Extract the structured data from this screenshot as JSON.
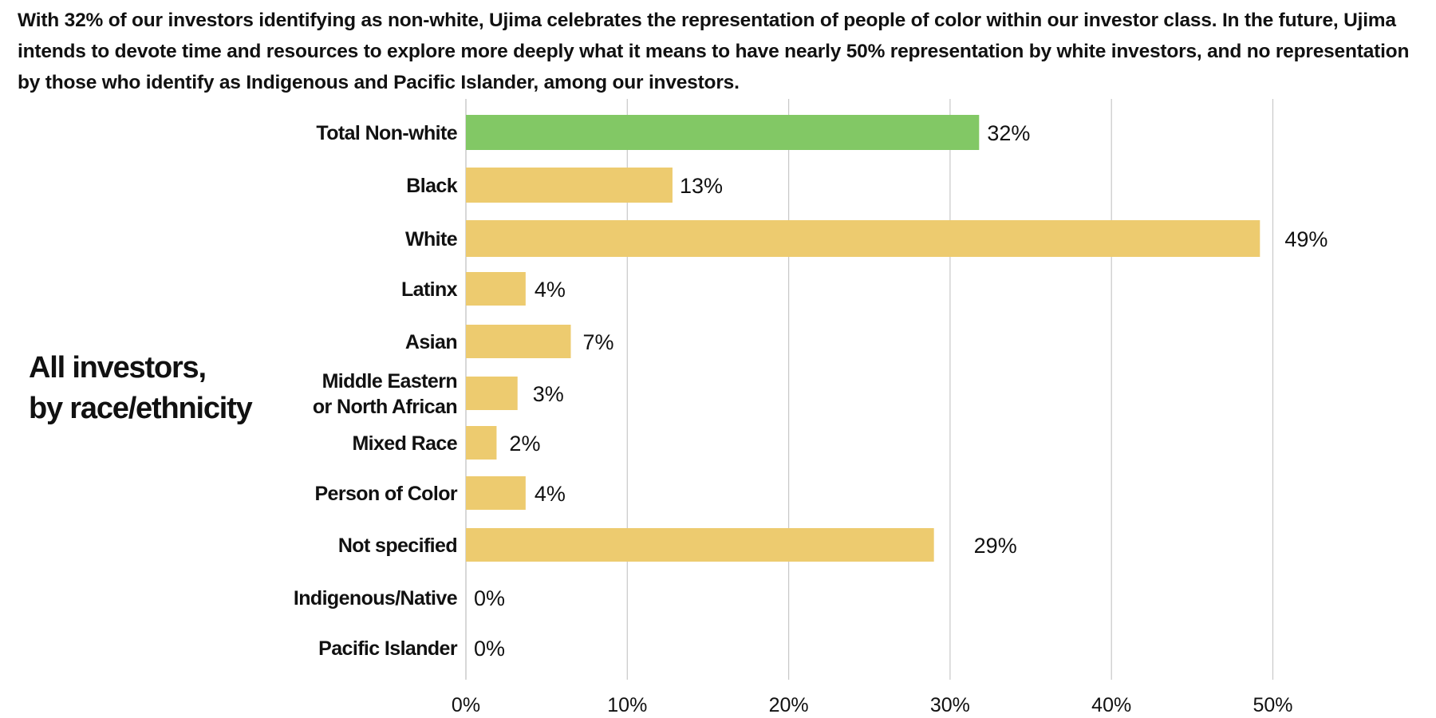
{
  "intro_text": "With 32% of our investors identifying as non-white, Ujima celebrates the representation of people of color within our investor class. In the future, Ujima intends to devote time and resources to explore more deeply what it means to have nearly 50% representation by white investors, and no representation by those who identify as Indigenous and Pacific Islander, among our investors.",
  "chart_title": {
    "line1": "All investors,",
    "line2": "by race/ethnicity"
  },
  "colors": {
    "highlight": "#82c865",
    "bar": "#edcb6f",
    "grid": "#c8c8c8",
    "axis": "#bdbdbd"
  },
  "chart_data": {
    "type": "bar",
    "orientation": "horizontal",
    "title": "All investors, by race/ethnicity",
    "xlabel": "",
    "ylabel": "",
    "xlim": [
      0,
      50
    ],
    "grid": true,
    "ticks": [
      0,
      10,
      20,
      30,
      40,
      50
    ],
    "tick_labels": [
      "0%",
      "10%",
      "20%",
      "30%",
      "40%",
      "50%"
    ],
    "categories": [
      [
        "Total Non-white"
      ],
      [
        "Black"
      ],
      [
        "White"
      ],
      [
        "Latinx"
      ],
      [
        "Asian"
      ],
      [
        "Middle Eastern",
        "or North African"
      ],
      [
        "Mixed Race"
      ],
      [
        "Person of Color"
      ],
      [
        "Not specified"
      ],
      [
        "Indigenous/Native"
      ],
      [
        "Pacific Islander"
      ]
    ],
    "values": [
      31.8,
      12.8,
      49.2,
      3.7,
      6.5,
      3.2,
      1.9,
      3.7,
      29.0,
      0,
      0
    ],
    "value_labels": [
      "32%",
      "13%",
      "49%",
      "4%",
      "7%",
      "3%",
      "2%",
      "4%",
      "29%",
      "0%",
      "0%"
    ],
    "highlighted": [
      true,
      false,
      false,
      false,
      false,
      false,
      false,
      false,
      false,
      false,
      false
    ]
  }
}
